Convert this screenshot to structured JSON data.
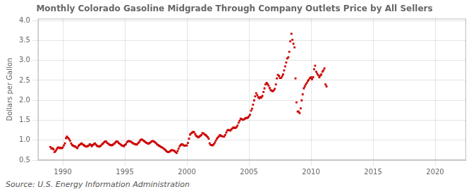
{
  "chart_data": {
    "type": "scatter",
    "title": "Monthly Colorado Gasoline Midgrade Through Company Outlets Price by All Sellers",
    "ylabel": "Dollars per Gallon",
    "annotation": "Source: U.S. Energy Information Administration",
    "color": "#cc0000",
    "marker": "square",
    "grid": true,
    "xlim": [
      1988.0,
      2022.5
    ],
    "ylim": [
      0.5,
      4.05
    ],
    "xticks": [
      1990,
      1995,
      2000,
      2005,
      2010,
      2015,
      2020
    ],
    "yticks": [
      0.5,
      {
        "value": 1.0,
        "label": "1.0"
      },
      1.5,
      {
        "value": 2.0,
        "label": "2.0"
      },
      2.5,
      {
        "value": 3.0,
        "label": "3.0"
      },
      3.5,
      {
        "value": 4.0,
        "label": "4.0"
      }
    ],
    "x": [
      1989.0,
      1989.08,
      1989.17,
      1989.25,
      1989.33,
      1989.42,
      1989.5,
      1989.58,
      1989.67,
      1989.75,
      1989.83,
      1989.92,
      1990.0,
      1990.08,
      1990.17,
      1990.25,
      1990.33,
      1990.42,
      1990.5,
      1990.58,
      1990.67,
      1990.75,
      1990.83,
      1990.92,
      1991.0,
      1991.08,
      1991.17,
      1991.25,
      1991.33,
      1991.42,
      1991.5,
      1991.58,
      1991.67,
      1991.75,
      1991.83,
      1991.92,
      1992.0,
      1992.08,
      1992.17,
      1992.25,
      1992.33,
      1992.42,
      1992.5,
      1992.58,
      1992.67,
      1992.75,
      1992.83,
      1992.92,
      1993.0,
      1993.08,
      1993.17,
      1993.25,
      1993.33,
      1993.42,
      1993.5,
      1993.58,
      1993.67,
      1993.75,
      1993.83,
      1993.92,
      1994.0,
      1994.08,
      1994.17,
      1994.25,
      1994.33,
      1994.42,
      1994.5,
      1994.58,
      1994.67,
      1994.75,
      1994.83,
      1994.92,
      1995.0,
      1995.08,
      1995.17,
      1995.25,
      1995.33,
      1995.42,
      1995.5,
      1995.58,
      1995.67,
      1995.75,
      1995.83,
      1995.92,
      1996.0,
      1996.08,
      1996.17,
      1996.25,
      1996.33,
      1996.42,
      1996.5,
      1996.58,
      1996.67,
      1996.75,
      1996.83,
      1996.92,
      1997.0,
      1997.08,
      1997.17,
      1997.25,
      1997.33,
      1997.42,
      1997.5,
      1997.58,
      1997.67,
      1997.75,
      1997.83,
      1997.92,
      1998.0,
      1998.08,
      1998.17,
      1998.25,
      1998.33,
      1998.42,
      1998.5,
      1998.58,
      1998.67,
      1998.75,
      1998.83,
      1998.92,
      1999.0,
      1999.08,
      1999.17,
      1999.25,
      1999.33,
      1999.42,
      1999.5,
      1999.58,
      1999.67,
      1999.75,
      1999.83,
      1999.92,
      2000.0,
      2000.08,
      2000.17,
      2000.25,
      2000.33,
      2000.42,
      2000.5,
      2000.58,
      2000.67,
      2000.75,
      2000.83,
      2000.92,
      2001.0,
      2001.08,
      2001.17,
      2001.25,
      2001.33,
      2001.42,
      2001.5,
      2001.58,
      2001.67,
      2001.75,
      2001.83,
      2001.92,
      2002.0,
      2002.08,
      2002.17,
      2002.25,
      2002.33,
      2002.42,
      2002.5,
      2002.58,
      2002.67,
      2002.75,
      2002.83,
      2002.92,
      2003.0,
      2003.08,
      2003.17,
      2003.25,
      2003.33,
      2003.42,
      2003.5,
      2003.58,
      2003.67,
      2003.75,
      2003.83,
      2003.92,
      2004.0,
      2004.08,
      2004.17,
      2004.25,
      2004.33,
      2004.42,
      2004.5,
      2004.58,
      2004.67,
      2004.75,
      2004.83,
      2004.92,
      2005.0,
      2005.08,
      2005.17,
      2005.25,
      2005.33,
      2005.42,
      2005.5,
      2005.58,
      2005.67,
      2005.75,
      2005.83,
      2005.92,
      2006.0,
      2006.08,
      2006.17,
      2006.25,
      2006.33,
      2006.42,
      2006.5,
      2006.58,
      2006.67,
      2006.75,
      2006.83,
      2006.92,
      2007.0,
      2007.08,
      2007.17,
      2007.25,
      2007.33,
      2007.42,
      2007.5,
      2007.58,
      2007.67,
      2007.75,
      2007.83,
      2007.92,
      2008.0,
      2008.08,
      2008.17,
      2008.25,
      2008.33,
      2008.42,
      2008.5,
      2008.58,
      2008.67,
      2008.75,
      2008.83,
      2008.92,
      2009.0,
      2009.08,
      2009.17,
      2009.25,
      2009.33,
      2009.42,
      2009.5,
      2009.58,
      2009.67,
      2009.75,
      2009.83,
      2009.92,
      2010.0,
      2010.08,
      2010.17,
      2010.25,
      2010.33,
      2010.42,
      2010.5,
      2010.58,
      2010.67,
      2010.75,
      2010.83,
      2010.92,
      2011.0,
      2011.08,
      2011.17,
      2011.25
    ],
    "values": [
      0.83,
      0.79,
      0.8,
      0.77,
      0.7,
      0.73,
      0.77,
      0.81,
      0.82,
      0.8,
      0.81,
      0.8,
      0.82,
      0.87,
      0.92,
      1.05,
      1.09,
      1.06,
      1.03,
      0.99,
      0.92,
      0.88,
      0.86,
      0.85,
      0.84,
      0.82,
      0.8,
      0.85,
      0.88,
      0.9,
      0.92,
      0.9,
      0.88,
      0.86,
      0.85,
      0.84,
      0.85,
      0.87,
      0.9,
      0.88,
      0.85,
      0.88,
      0.9,
      0.92,
      0.89,
      0.86,
      0.85,
      0.84,
      0.85,
      0.87,
      0.9,
      0.92,
      0.95,
      0.97,
      0.96,
      0.93,
      0.91,
      0.89,
      0.88,
      0.87,
      0.88,
      0.9,
      0.92,
      0.95,
      0.97,
      0.96,
      0.93,
      0.91,
      0.89,
      0.87,
      0.86,
      0.85,
      0.88,
      0.9,
      0.95,
      0.97,
      0.98,
      0.97,
      0.96,
      0.94,
      0.92,
      0.91,
      0.9,
      0.89,
      0.9,
      0.93,
      0.96,
      1.0,
      1.02,
      1.01,
      0.99,
      0.97,
      0.95,
      0.93,
      0.92,
      0.91,
      0.93,
      0.95,
      0.97,
      0.98,
      0.97,
      0.95,
      0.93,
      0.9,
      0.88,
      0.86,
      0.85,
      0.83,
      0.82,
      0.8,
      0.78,
      0.76,
      0.73,
      0.71,
      0.7,
      0.71,
      0.73,
      0.75,
      0.75,
      0.74,
      0.73,
      0.7,
      0.68,
      0.73,
      0.79,
      0.85,
      0.88,
      0.9,
      0.89,
      0.87,
      0.86,
      0.87,
      0.87,
      0.93,
      1.04,
      1.14,
      1.17,
      1.19,
      1.21,
      1.2,
      1.15,
      1.11,
      1.09,
      1.07,
      1.09,
      1.11,
      1.13,
      1.18,
      1.17,
      1.15,
      1.13,
      1.11,
      1.08,
      1.04,
      0.92,
      0.88,
      0.88,
      0.87,
      0.9,
      0.94,
      0.99,
      1.04,
      1.07,
      1.1,
      1.13,
      1.11,
      1.1,
      1.09,
      1.09,
      1.13,
      1.19,
      1.24,
      1.26,
      1.25,
      1.24,
      1.27,
      1.3,
      1.32,
      1.31,
      1.31,
      1.33,
      1.37,
      1.44,
      1.49,
      1.54,
      1.53,
      1.51,
      1.52,
      1.54,
      1.56,
      1.55,
      1.57,
      1.6,
      1.64,
      1.74,
      1.79,
      1.89,
      2.0,
      2.1,
      2.18,
      2.13,
      2.08,
      2.05,
      2.08,
      2.07,
      2.11,
      2.21,
      2.3,
      2.4,
      2.44,
      2.41,
      2.37,
      2.31,
      2.26,
      2.24,
      2.23,
      2.25,
      2.29,
      2.4,
      2.55,
      2.64,
      2.61,
      2.56,
      2.56,
      2.6,
      2.65,
      2.75,
      2.85,
      2.95,
      3.05,
      3.08,
      3.22,
      3.48,
      3.67,
      3.52,
      3.42,
      3.33,
      2.55,
      1.95,
      1.72,
      1.72,
      1.68,
      1.8,
      2.0,
      2.15,
      2.3,
      2.35,
      2.4,
      2.44,
      2.49,
      2.52,
      2.56,
      2.58,
      2.53,
      2.58,
      2.78,
      2.87,
      2.72,
      2.67,
      2.63,
      2.58,
      2.62,
      2.65,
      2.72,
      2.75,
      2.8,
      2.4,
      2.35
    ]
  }
}
